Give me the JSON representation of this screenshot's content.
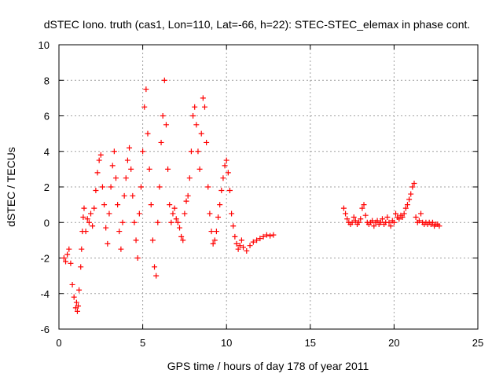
{
  "chart_data": {
    "type": "scatter",
    "title": "dSTEC Iono. truth (cas1, Lon=110, Lat=-66, h=22): STEC-STEC_elemax in phase cont.",
    "xlabel": "GPS time / hours of day 178 of year 2011",
    "ylabel": "dSTEC  / TECUs",
    "xlim": [
      0,
      25
    ],
    "ylim": [
      -6,
      10
    ],
    "xticks": [
      0,
      5,
      10,
      15,
      20,
      25
    ],
    "yticks": [
      -6,
      -4,
      -2,
      0,
      2,
      4,
      6,
      8,
      10
    ],
    "grid": true,
    "marker": "+",
    "series": [
      {
        "color": "#ff0000",
        "x": [
          0.3,
          0.4,
          0.5,
          0.6,
          0.7,
          0.8,
          0.9,
          1.0,
          1.05,
          1.1,
          1.15,
          1.2,
          1.3,
          1.35,
          1.4,
          1.45,
          1.5,
          1.6,
          1.7,
          1.8,
          1.9,
          2.0,
          2.1,
          2.2,
          2.3,
          2.4,
          2.5,
          2.6,
          2.7,
          2.8,
          2.9,
          3.0,
          3.1,
          3.2,
          3.3,
          3.4,
          3.5,
          3.6,
          3.7,
          3.8,
          3.9,
          4.0,
          4.1,
          4.2,
          4.3,
          4.4,
          4.5,
          4.6,
          4.7,
          4.8,
          4.9,
          5.0,
          5.1,
          5.2,
          5.3,
          5.4,
          5.5,
          5.6,
          5.7,
          5.8,
          5.9,
          6.0,
          6.1,
          6.2,
          6.3,
          6.4,
          6.5,
          6.6,
          6.7,
          6.8,
          6.9,
          7.0,
          7.1,
          7.2,
          7.3,
          7.4,
          7.5,
          7.6,
          7.7,
          7.8,
          7.9,
          8.0,
          8.1,
          8.2,
          8.3,
          8.4,
          8.5,
          8.6,
          8.7,
          8.8,
          8.9,
          9.0,
          9.1,
          9.2,
          9.3,
          9.4,
          9.5,
          9.6,
          9.7,
          9.8,
          9.9,
          10.0,
          10.1,
          10.2,
          10.3,
          10.4,
          10.5,
          10.6,
          10.7,
          10.8,
          10.9,
          11.0,
          11.2,
          11.4,
          11.6,
          11.8,
          12.0,
          12.2,
          12.4,
          12.6,
          12.8
        ],
        "y": [
          -2.0,
          -2.2,
          -1.8,
          -1.5,
          -2.3,
          -3.5,
          -4.2,
          -4.8,
          -4.5,
          -5.0,
          -4.7,
          -3.8,
          -2.5,
          -1.5,
          -0.5,
          0.3,
          0.8,
          -0.5,
          0.2,
          0.0,
          0.5,
          -0.2,
          0.8,
          1.8,
          2.8,
          3.5,
          3.8,
          2.0,
          1.0,
          -0.3,
          -1.2,
          0.5,
          2.0,
          3.2,
          4.0,
          2.5,
          1.0,
          -0.5,
          -1.5,
          0.0,
          1.5,
          2.5,
          3.5,
          4.2,
          3.0,
          1.5,
          0.0,
          -1.0,
          -2.0,
          0.5,
          2.0,
          4.0,
          6.5,
          7.5,
          5.0,
          3.0,
          1.0,
          -1.0,
          -2.5,
          -3.0,
          0.0,
          2.0,
          4.5,
          6.0,
          8.0,
          5.5,
          3.0,
          1.0,
          0.0,
          0.5,
          0.8,
          0.2,
          0.0,
          -0.3,
          -0.8,
          -1.0,
          0.5,
          1.2,
          1.5,
          2.5,
          4.0,
          6.0,
          6.5,
          5.5,
          4.0,
          3.0,
          5.0,
          7.0,
          6.5,
          4.5,
          2.0,
          0.5,
          -0.5,
          -1.2,
          -1.0,
          -0.5,
          0.3,
          1.0,
          1.8,
          2.5,
          3.2,
          3.5,
          2.8,
          1.8,
          0.5,
          -0.2,
          -0.8,
          -1.2,
          -1.5,
          -1.3,
          -1.0,
          -1.4,
          -1.6,
          -1.3,
          -1.1,
          -1.0,
          -0.9,
          -0.8,
          -0.7,
          -0.75,
          -0.7
        ]
      },
      {
        "color": "#ff0000",
        "x": [
          17.0,
          17.1,
          17.2,
          17.3,
          17.4,
          17.5,
          17.6,
          17.7,
          17.8,
          17.9,
          18.0,
          18.1,
          18.2,
          18.3,
          18.4,
          18.5,
          18.6,
          18.7,
          18.8,
          18.9,
          19.0,
          19.1,
          19.2,
          19.3,
          19.4,
          19.5,
          19.6,
          19.7,
          19.8,
          19.9,
          20.0,
          20.1,
          20.2,
          20.3,
          20.4,
          20.5,
          20.6,
          20.7,
          20.8,
          20.9,
          21.0,
          21.1,
          21.2,
          21.3,
          21.4,
          21.5,
          21.6,
          21.7,
          21.8,
          21.9,
          22.0,
          22.1,
          22.2,
          22.3,
          22.4,
          22.5,
          22.6,
          22.7
        ],
        "y": [
          0.8,
          0.5,
          0.2,
          0.0,
          -0.1,
          0.0,
          0.3,
          0.1,
          -0.1,
          0.0,
          0.2,
          0.8,
          1.0,
          0.4,
          0.0,
          -0.1,
          0.0,
          0.1,
          -0.2,
          0.0,
          0.1,
          -0.1,
          0.0,
          0.2,
          -0.1,
          0.0,
          0.3,
          0.0,
          -0.2,
          0.1,
          0.0,
          0.5,
          0.3,
          0.2,
          0.4,
          0.3,
          0.5,
          0.8,
          1.0,
          1.3,
          1.6,
          2.0,
          2.2,
          0.3,
          0.0,
          0.1,
          0.5,
          0.0,
          -0.1,
          0.0,
          -0.1,
          0.0,
          -0.1,
          0.0,
          -0.2,
          -0.1,
          -0.1,
          -0.2
        ]
      }
    ]
  }
}
